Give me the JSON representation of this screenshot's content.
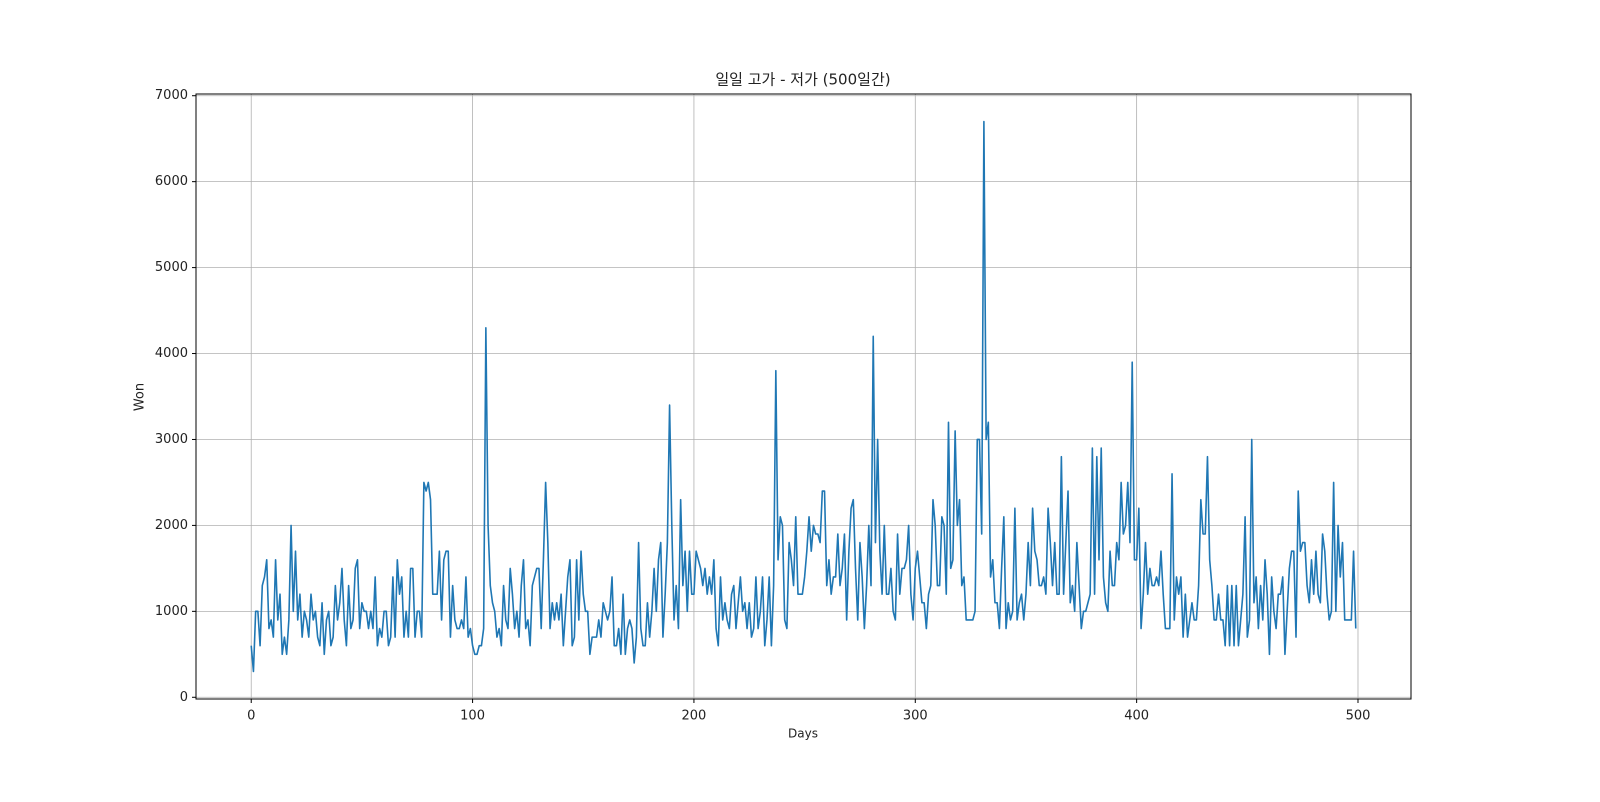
{
  "chart_data": {
    "type": "line",
    "title": "일일 고가 - 저가 (500일간)",
    "x_label": "Days",
    "y_label": "Won",
    "color": "#1f77b4",
    "grid": true,
    "xlim": [
      -24.95,
      523.95
    ],
    "xticks": [
      0,
      100,
      200,
      300,
      400,
      500
    ],
    "ylim": [
      -20,
      7020
    ],
    "yticks": [
      0,
      1000,
      2000,
      3000,
      4000,
      5000,
      6000,
      7000
    ],
    "x": [
      0,
      1,
      2,
      3,
      4,
      5,
      6,
      7,
      8,
      9,
      10,
      11,
      12,
      13,
      14,
      15,
      16,
      17,
      18,
      19,
      20,
      21,
      22,
      23,
      24,
      25,
      26,
      27,
      28,
      29,
      30,
      31,
      32,
      33,
      34,
      35,
      36,
      37,
      38,
      39,
      40,
      41,
      42,
      43,
      44,
      45,
      46,
      47,
      48,
      49,
      50,
      51,
      52,
      53,
      54,
      55,
      56,
      57,
      58,
      59,
      60,
      61,
      62,
      63,
      64,
      65,
      66,
      67,
      68,
      69,
      70,
      71,
      72,
      73,
      74,
      75,
      76,
      77,
      78,
      79,
      80,
      81,
      82,
      83,
      84,
      85,
      86,
      87,
      88,
      89,
      90,
      91,
      92,
      93,
      94,
      95,
      96,
      97,
      98,
      99,
      100,
      101,
      102,
      103,
      104,
      105,
      106,
      107,
      108,
      109,
      110,
      111,
      112,
      113,
      114,
      115,
      116,
      117,
      118,
      119,
      120,
      121,
      122,
      123,
      124,
      125,
      126,
      127,
      128,
      129,
      130,
      131,
      132,
      133,
      134,
      135,
      136,
      137,
      138,
      139,
      140,
      141,
      142,
      143,
      144,
      145,
      146,
      147,
      148,
      149,
      150,
      151,
      152,
      153,
      154,
      155,
      156,
      157,
      158,
      159,
      160,
      161,
      162,
      163,
      164,
      165,
      166,
      167,
      168,
      169,
      170,
      171,
      172,
      173,
      174,
      175,
      176,
      177,
      178,
      179,
      180,
      181,
      182,
      183,
      184,
      185,
      186,
      187,
      188,
      189,
      190,
      191,
      192,
      193,
      194,
      195,
      196,
      197,
      198,
      199,
      200,
      201,
      202,
      203,
      204,
      205,
      206,
      207,
      208,
      209,
      210,
      211,
      212,
      213,
      214,
      215,
      216,
      217,
      218,
      219,
      220,
      221,
      222,
      223,
      224,
      225,
      226,
      227,
      228,
      229,
      230,
      231,
      232,
      233,
      234,
      235,
      236,
      237,
      238,
      239,
      240,
      241,
      242,
      243,
      244,
      245,
      246,
      247,
      248,
      249,
      250,
      251,
      252,
      253,
      254,
      255,
      256,
      257,
      258,
      259,
      260,
      261,
      262,
      263,
      264,
      265,
      266,
      267,
      268,
      269,
      270,
      271,
      272,
      273,
      274,
      275,
      276,
      277,
      278,
      279,
      280,
      281,
      282,
      283,
      284,
      285,
      286,
      287,
      288,
      289,
      290,
      291,
      292,
      293,
      294,
      295,
      296,
      297,
      298,
      299,
      300,
      301,
      302,
      303,
      304,
      305,
      306,
      307,
      308,
      309,
      310,
      311,
      312,
      313,
      314,
      315,
      316,
      317,
      318,
      319,
      320,
      321,
      322,
      323,
      324,
      325,
      326,
      327,
      328,
      329,
      330,
      331,
      332,
      333,
      334,
      335,
      336,
      337,
      338,
      339,
      340,
      341,
      342,
      343,
      344,
      345,
      346,
      347,
      348,
      349,
      350,
      351,
      352,
      353,
      354,
      355,
      356,
      357,
      358,
      359,
      360,
      361,
      362,
      363,
      364,
      365,
      366,
      367,
      368,
      369,
      370,
      371,
      372,
      373,
      374,
      375,
      376,
      377,
      378,
      379,
      380,
      381,
      382,
      383,
      384,
      385,
      386,
      387,
      388,
      389,
      390,
      391,
      392,
      393,
      394,
      395,
      396,
      397,
      398,
      399,
      400,
      401,
      402,
      403,
      404,
      405,
      406,
      407,
      408,
      409,
      410,
      411,
      412,
      413,
      414,
      415,
      416,
      417,
      418,
      419,
      420,
      421,
      422,
      423,
      424,
      425,
      426,
      427,
      428,
      429,
      430,
      431,
      432,
      433,
      434,
      435,
      436,
      437,
      438,
      439,
      440,
      441,
      442,
      443,
      444,
      445,
      446,
      447,
      448,
      449,
      450,
      451,
      452,
      453,
      454,
      455,
      456,
      457,
      458,
      459,
      460,
      461,
      462,
      463,
      464,
      465,
      466,
      467,
      468,
      469,
      470,
      471,
      472,
      473,
      474,
      475,
      476,
      477,
      478,
      479,
      480,
      481,
      482,
      483,
      484,
      485,
      486,
      487,
      488,
      489,
      490,
      491,
      492,
      493,
      494,
      495,
      496,
      497,
      498,
      499
    ],
    "values": [
      600,
      300,
      1000,
      1000,
      600,
      1300,
      1400,
      1600,
      800,
      900,
      700,
      1600,
      900,
      1200,
      500,
      700,
      500,
      900,
      2000,
      1000,
      1700,
      900,
      1200,
      700,
      1000,
      900,
      700,
      1200,
      900,
      1000,
      700,
      600,
      1100,
      500,
      900,
      1000,
      600,
      700,
      1300,
      900,
      1100,
      1500,
      900,
      600,
      1300,
      800,
      900,
      1500,
      1600,
      800,
      1100,
      1000,
      1000,
      800,
      1000,
      800,
      1400,
      600,
      800,
      700,
      1000,
      1000,
      600,
      700,
      1400,
      700,
      1600,
      1200,
      1400,
      700,
      1000,
      700,
      1500,
      1500,
      700,
      1000,
      1000,
      700,
      2500,
      2400,
      2500,
      2300,
      1200,
      1200,
      1200,
      1700,
      900,
      1600,
      1700,
      1700,
      700,
      1300,
      900,
      800,
      800,
      900,
      800,
      1400,
      700,
      800,
      600,
      500,
      500,
      600,
      600,
      800,
      4300,
      2000,
      1300,
      1100,
      1000,
      700,
      800,
      600,
      1300,
      900,
      800,
      1500,
      1200,
      800,
      1000,
      700,
      1300,
      1600,
      800,
      900,
      600,
      1300,
      1400,
      1500,
      1500,
      800,
      1600,
      2500,
      1800,
      800,
      1100,
      900,
      1100,
      900,
      1200,
      600,
      1000,
      1400,
      1600,
      600,
      700,
      1600,
      900,
      1700,
      1200,
      1000,
      1000,
      500,
      700,
      700,
      700,
      900,
      700,
      1100,
      1000,
      900,
      1000,
      1400,
      600,
      600,
      800,
      500,
      1200,
      500,
      800,
      900,
      800,
      400,
      700,
      1800,
      800,
      600,
      600,
      1100,
      700,
      1000,
      1500,
      1000,
      1600,
      1800,
      700,
      1200,
      1800,
      3400,
      2000,
      900,
      1300,
      800,
      2300,
      1300,
      1700,
      1000,
      1700,
      1200,
      1200,
      1700,
      1600,
      1500,
      1300,
      1500,
      1200,
      1400,
      1200,
      1600,
      800,
      600,
      1400,
      900,
      1100,
      900,
      800,
      1200,
      1300,
      800,
      1100,
      1400,
      1000,
      1100,
      800,
      1100,
      700,
      800,
      1400,
      800,
      1000,
      1400,
      600,
      900,
      1400,
      600,
      1300,
      3800,
      1600,
      2100,
      2000,
      900,
      800,
      1800,
      1600,
      1300,
      2100,
      1200,
      1200,
      1200,
      1400,
      1700,
      2100,
      1700,
      2000,
      1900,
      1900,
      1800,
      2400,
      2400,
      1300,
      1600,
      1200,
      1400,
      1400,
      1900,
      1300,
      1500,
      1900,
      900,
      1700,
      2200,
      2300,
      1500,
      900,
      1800,
      1400,
      800,
      1300,
      2000,
      1300,
      4200,
      1800,
      3000,
      1700,
      1200,
      2000,
      1200,
      1200,
      1500,
      1000,
      900,
      1900,
      1200,
      1500,
      1500,
      1600,
      2000,
      1200,
      900,
      1500,
      1700,
      1400,
      1100,
      1100,
      800,
      1200,
      1300,
      2300,
      2000,
      1300,
      1300,
      2100,
      2000,
      1200,
      3200,
      1500,
      1600,
      3100,
      2000,
      2300,
      1300,
      1400,
      900,
      900,
      900,
      900,
      1000,
      3000,
      3000,
      1900,
      6700,
      3000,
      3200,
      1400,
      1600,
      1100,
      1100,
      800,
      1500,
      2100,
      800,
      1100,
      900,
      1000,
      2200,
      900,
      1100,
      1200,
      900,
      1200,
      1800,
      1300,
      2200,
      1700,
      1600,
      1300,
      1300,
      1400,
      1200,
      2200,
      1800,
      1300,
      1800,
      1200,
      1200,
      2800,
      1200,
      1800,
      2400,
      1100,
      1300,
      1000,
      1800,
      1300,
      800,
      1000,
      1000,
      1100,
      1200,
      2900,
      1200,
      2800,
      1600,
      2900,
      1400,
      1100,
      1000,
      1700,
      1300,
      1300,
      1800,
      1600,
      2500,
      1900,
      2000,
      2500,
      1800,
      3900,
      1600,
      1600,
      2200,
      800,
      1200,
      1800,
      1200,
      1500,
      1300,
      1300,
      1400,
      1300,
      1700,
      1200,
      800,
      800,
      800,
      2600,
      900,
      1400,
      1200,
      1400,
      700,
      1200,
      700,
      900,
      1100,
      900,
      900,
      1300,
      2300,
      1900,
      1900,
      2800,
      1600,
      1300,
      900,
      900,
      1200,
      900,
      900,
      600,
      1300,
      600,
      1300,
      600,
      1300,
      600,
      900,
      1200,
      2100,
      700,
      900,
      3000,
      1100,
      1400,
      800,
      1300,
      900,
      1600,
      1200,
      500,
      1400,
      1000,
      800,
      1200,
      1200,
      1400,
      500,
      1000,
      1500,
      1700,
      1700,
      700,
      2400,
      1700,
      1800,
      1800,
      1300,
      1100,
      1600,
      1200,
      1700,
      1200,
      1100,
      1900,
      1700,
      1200,
      900,
      1000,
      2500,
      1000,
      2000,
      1400,
      1800,
      900,
      900,
      900,
      900,
      1700,
      800
    ]
  }
}
